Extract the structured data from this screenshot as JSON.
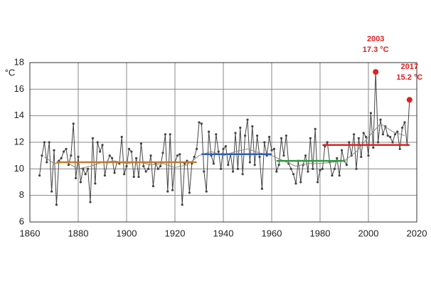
{
  "chart_data": {
    "type": "line",
    "y_label": "°C",
    "xlim": [
      1860,
      2020
    ],
    "xticks": [
      1860,
      1880,
      1900,
      1920,
      1940,
      1960,
      1980,
      2000,
      2020
    ],
    "ylim": [
      6,
      18
    ],
    "yticks": [
      6,
      8,
      10,
      12,
      14,
      16,
      18
    ],
    "grid": true,
    "x": [
      1864,
      1865,
      1866,
      1867,
      1868,
      1869,
      1870,
      1871,
      1872,
      1873,
      1874,
      1875,
      1876,
      1877,
      1878,
      1879,
      1880,
      1881,
      1882,
      1883,
      1884,
      1885,
      1886,
      1887,
      1888,
      1889,
      1890,
      1891,
      1892,
      1893,
      1894,
      1895,
      1896,
      1897,
      1898,
      1899,
      1900,
      1901,
      1902,
      1903,
      1904,
      1905,
      1906,
      1907,
      1908,
      1909,
      1910,
      1911,
      1912,
      1913,
      1914,
      1915,
      1916,
      1917,
      1918,
      1919,
      1920,
      1921,
      1922,
      1923,
      1924,
      1925,
      1926,
      1927,
      1928,
      1929,
      1930,
      1931,
      1932,
      1933,
      1934,
      1935,
      1936,
      1937,
      1938,
      1939,
      1940,
      1941,
      1942,
      1943,
      1944,
      1945,
      1946,
      1947,
      1948,
      1949,
      1950,
      1951,
      1952,
      1953,
      1954,
      1955,
      1956,
      1957,
      1958,
      1959,
      1960,
      1961,
      1962,
      1963,
      1964,
      1965,
      1966,
      1967,
      1968,
      1969,
      1970,
      1971,
      1972,
      1973,
      1974,
      1975,
      1976,
      1977,
      1978,
      1979,
      1980,
      1981,
      1982,
      1983,
      1984,
      1985,
      1986,
      1987,
      1988,
      1989,
      1990,
      1991,
      1992,
      1993,
      1994,
      1995,
      1996,
      1997,
      1998,
      1999,
      2000,
      2001,
      2002,
      2003,
      2004,
      2005,
      2006,
      2007,
      2008,
      2009,
      2010,
      2011,
      2012,
      2013,
      2014,
      2015,
      2016,
      2017
    ],
    "series": [
      {
        "color": "#444444",
        "markers": true,
        "values": [
          9.5,
          11.0,
          12.0,
          10.5,
          12.0,
          8.3,
          11.4,
          7.3,
          10.6,
          10.8,
          11.3,
          11.5,
          10.3,
          11.0,
          13.4,
          9.3,
          10.9,
          9.0,
          10.0,
          9.6,
          10.0,
          7.5,
          12.3,
          8.9,
          12.0,
          11.3,
          11.8,
          9.5,
          10.5,
          11.0,
          10.8,
          9.7,
          10.5,
          10.4,
          12.4,
          9.6,
          10.2,
          11.5,
          11.3,
          9.4,
          10.8,
          9.4,
          11.9,
          10.2,
          9.8,
          10.0,
          11.0,
          8.7,
          10.4,
          10.0,
          10.2,
          11.2,
          12.6,
          8.3,
          12.6,
          8.4,
          10.5,
          11.0,
          11.1,
          7.3,
          10.4,
          10.6,
          8.2,
          10.4,
          10.9,
          11.5,
          13.5,
          13.4,
          9.8,
          8.3,
          12.8,
          11.0,
          10.4,
          12.6,
          11.3,
          10.0,
          11.5,
          11.7,
          10.3,
          11.1,
          9.8,
          12.7,
          10.0,
          13.1,
          9.6,
          12.5,
          13.7,
          10.5,
          13.2,
          10.3,
          12.5,
          10.9,
          8.5,
          12.0,
          11.0,
          12.4,
          11.4,
          11.5,
          9.8,
          10.3,
          12.3,
          11.0,
          12.5,
          10.4,
          10.0,
          9.6,
          8.9,
          10.6,
          9.0,
          10.3,
          11.0,
          9.8,
          12.3,
          10.0,
          13.0,
          9.0,
          9.9,
          10.0,
          11.7,
          12.0,
          10.5,
          9.5,
          10.0,
          10.8,
          9.5,
          11.4,
          10.6,
          10.3,
          12.0,
          11.0,
          12.6,
          10.0,
          12.3,
          10.9,
          12.7,
          12.4,
          11.0,
          14.2,
          11.6,
          17.3,
          12.0,
          13.7,
          12.6,
          13.2,
          12.5,
          12.4,
          12.0,
          12.6,
          12.8,
          11.5,
          13.1,
          13.5,
          11.8,
          15.2
        ]
      },
      {
        "color": "#888888",
        "x": [
          1866,
          1870,
          1875,
          1880,
          1885,
          1890,
          1895,
          1900,
          1905,
          1910,
          1915,
          1920,
          1925,
          1930,
          1935,
          1940,
          1945,
          1950,
          1955,
          1960,
          1965,
          1970,
          1975,
          1980,
          1985,
          1990,
          1995,
          2000,
          2005,
          2010,
          2015
        ],
        "values": [
          10.9,
          10.4,
          10.5,
          10.0,
          10.2,
          10.5,
          10.6,
          10.4,
          10.5,
          10.3,
          10.4,
          10.1,
          10.3,
          11.0,
          11.3,
          11.0,
          11.3,
          11.5,
          11.2,
          11.0,
          10.6,
          10.2,
          10.4,
          10.4,
          10.5,
          10.6,
          11.3,
          12.4,
          13.4,
          12.8,
          12.5
        ]
      },
      {
        "color": "#c8782a",
        "width": 2.5,
        "x": [
          1871,
          1929
        ],
        "values": [
          10.5,
          10.5
        ]
      },
      {
        "color": "#2d5fbf",
        "width": 2.5,
        "x": [
          1931,
          1960
        ],
        "values": [
          11.1,
          11.1
        ]
      },
      {
        "color": "#2e9a3c",
        "width": 2.5,
        "x": [
          1962,
          1990
        ],
        "values": [
          10.6,
          10.6
        ]
      },
      {
        "color": "#e0201f",
        "width": 2.5,
        "x": [
          1981,
          2017
        ],
        "values": [
          11.8,
          11.8
        ]
      }
    ],
    "annotations": [
      {
        "x": 2003,
        "y": 17.3,
        "label": "2003",
        "value_label": "17.3 °C",
        "color": "#e0201f"
      },
      {
        "x": 2017,
        "y": 15.2,
        "label": "2017",
        "value_label": "15.2 °C",
        "color": "#e0201f"
      }
    ]
  }
}
